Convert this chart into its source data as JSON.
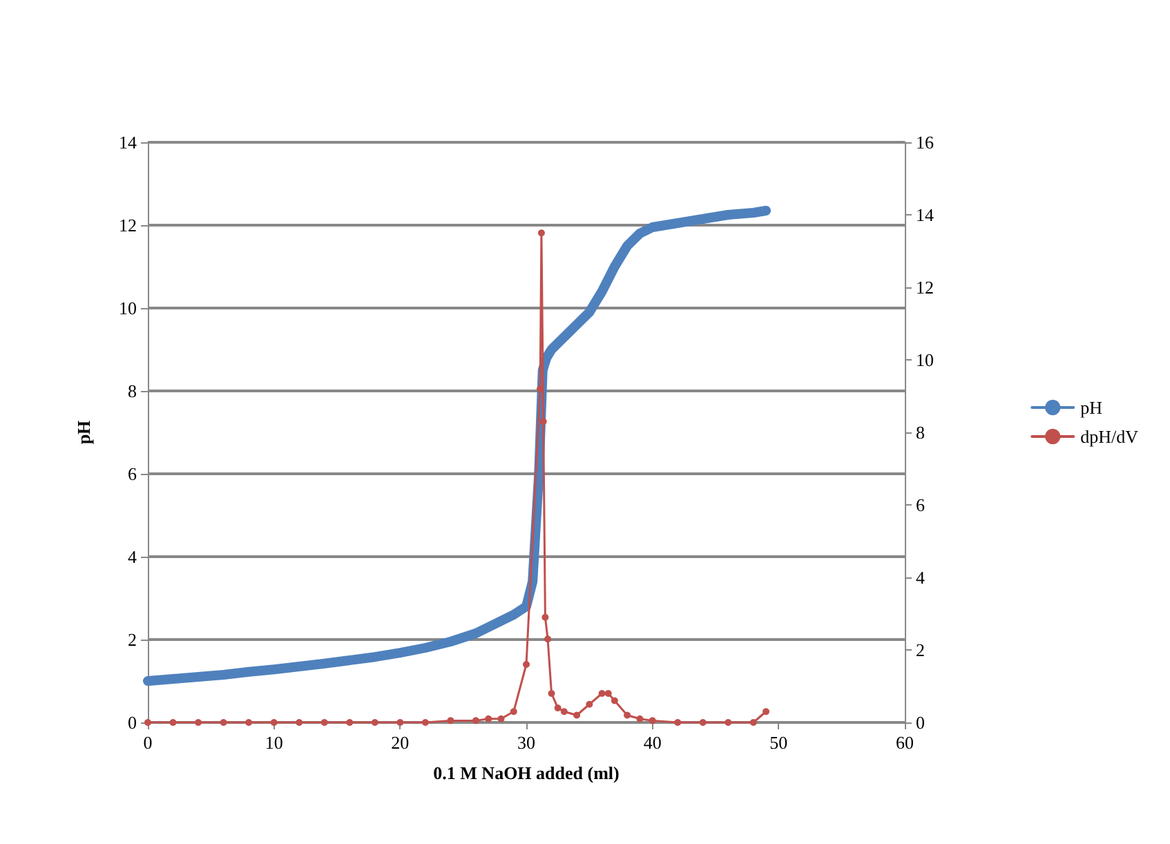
{
  "chart_data": {
    "type": "line",
    "xlabel": "0.1 M NaOH added (ml)",
    "ylabel": "pH",
    "xlim": [
      0,
      60
    ],
    "xticks": [
      0,
      10,
      20,
      30,
      40,
      50,
      60
    ],
    "ylim": [
      0,
      14
    ],
    "yticks": [
      0,
      2,
      4,
      6,
      8,
      10,
      12,
      14
    ],
    "y2lim": [
      0,
      16
    ],
    "y2ticks": [
      0,
      2,
      4,
      6,
      8,
      10,
      12,
      14,
      16
    ],
    "grid": "y",
    "legend": "right",
    "marker": "circle",
    "series": [
      {
        "name": "pH",
        "color": "#4f81bd",
        "x": [
          0,
          2,
          4,
          6,
          8,
          10,
          12,
          14,
          16,
          18,
          20,
          22,
          24,
          26,
          27,
          28,
          29,
          30,
          30.5,
          31,
          31.3,
          31.6,
          32,
          33,
          34,
          35,
          36,
          37,
          38,
          39,
          40,
          42,
          44,
          46,
          48,
          49
        ],
        "values": [
          1.0,
          1.05,
          1.1,
          1.15,
          1.22,
          1.28,
          1.35,
          1.42,
          1.5,
          1.58,
          1.68,
          1.8,
          1.95,
          2.15,
          2.3,
          2.45,
          2.6,
          2.8,
          3.4,
          6.0,
          8.5,
          8.8,
          9.0,
          9.3,
          9.6,
          9.9,
          10.4,
          11.0,
          11.5,
          11.8,
          11.95,
          12.05,
          12.15,
          12.25,
          12.3,
          12.35
        ]
      },
      {
        "name": "dpH/dV",
        "color": "#c0504d",
        "axis": "y2",
        "x": [
          0,
          2,
          4,
          6,
          8,
          10,
          12,
          14,
          16,
          18,
          20,
          22,
          24,
          26,
          27,
          28,
          29,
          30,
          31.1,
          31.2,
          31.35,
          31.5,
          31.7,
          32,
          32.5,
          33,
          34,
          35,
          36,
          36.5,
          37,
          38,
          39,
          40,
          42,
          44,
          46,
          48,
          49
        ],
        "values": [
          0,
          0,
          0,
          0,
          0,
          0,
          0,
          0,
          0,
          0,
          0,
          0,
          0.05,
          0.05,
          0.1,
          0.1,
          0.3,
          1.6,
          9.2,
          13.5,
          8.3,
          2.9,
          2.3,
          0.8,
          0.4,
          0.3,
          0.2,
          0.5,
          0.8,
          0.8,
          0.6,
          0.2,
          0.1,
          0.05,
          0,
          0,
          0,
          0,
          0.3
        ]
      }
    ]
  }
}
